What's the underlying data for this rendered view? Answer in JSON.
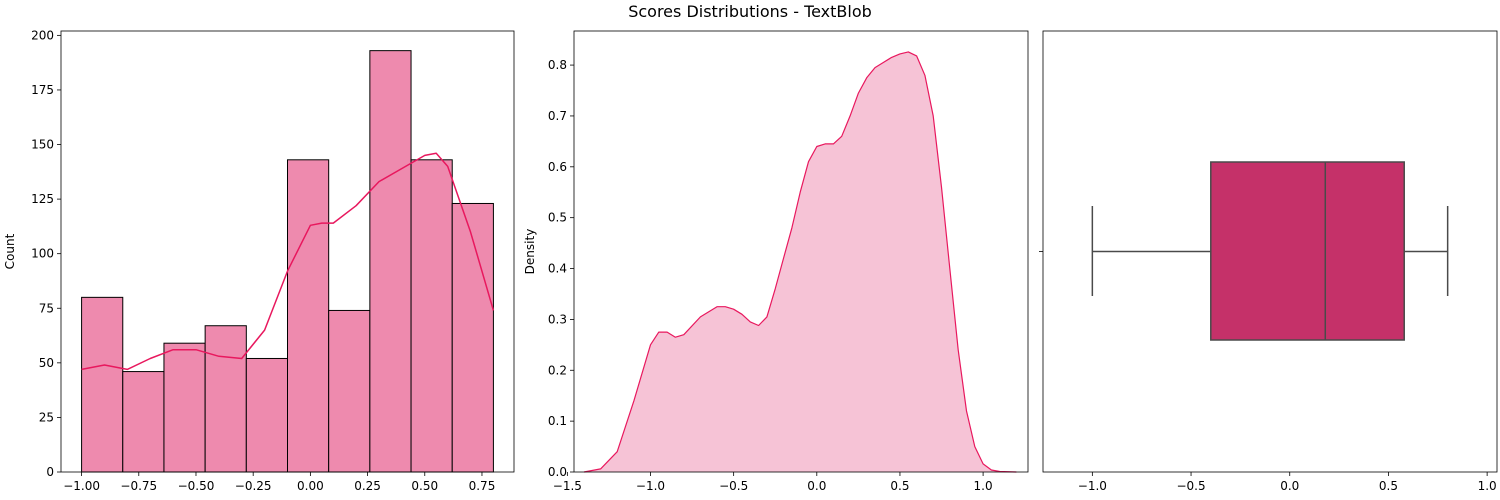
{
  "figure_title": "Scores Distributions - TextBlob",
  "colors": {
    "hist_fill": "#ee8aae",
    "hist_edge": "#000000",
    "kde_line": "#e8185e",
    "density_fill": "#f6c3d6",
    "box_fill": "#c53169",
    "box_line": "#4a4a4a"
  },
  "chart_data": [
    {
      "type": "bar",
      "name": "histogram",
      "bin_edges": [
        -1.0,
        -0.82,
        -0.64,
        -0.46,
        -0.28,
        -0.1,
        0.08,
        0.26,
        0.44,
        0.62,
        0.8
      ],
      "values": [
        80,
        46,
        59,
        67,
        52,
        143,
        74,
        193,
        143,
        123
      ],
      "kde_overlay": {
        "x": [
          -1.0,
          -0.9,
          -0.8,
          -0.7,
          -0.6,
          -0.5,
          -0.4,
          -0.3,
          -0.2,
          -0.1,
          0.0,
          0.05,
          0.1,
          0.2,
          0.3,
          0.4,
          0.5,
          0.55,
          0.6,
          0.7,
          0.8
        ],
        "y": [
          47,
          49,
          47,
          52,
          56,
          56,
          53,
          52,
          65,
          92,
          113,
          114,
          114,
          122,
          133,
          139,
          145,
          146,
          140,
          110,
          74
        ]
      },
      "xlabel": "",
      "ylabel": "Count",
      "xlim": [
        -1.09,
        0.89
      ],
      "ylim": [
        0,
        202
      ],
      "xticks": [
        -1.0,
        -0.75,
        -0.5,
        -0.25,
        0.0,
        0.25,
        0.5,
        0.75
      ],
      "xtick_labels": [
        "−1.00",
        "−0.75",
        "−0.50",
        "−0.25",
        "0.00",
        "0.25",
        "0.50",
        "0.75"
      ],
      "yticks": [
        0,
        25,
        50,
        75,
        100,
        125,
        150,
        175,
        200
      ],
      "ytick_labels": [
        "0",
        "25",
        "50",
        "75",
        "100",
        "125",
        "150",
        "175",
        "200"
      ],
      "grid": false
    },
    {
      "type": "area",
      "name": "density",
      "x": [
        -1.4,
        -1.3,
        -1.2,
        -1.1,
        -1.0,
        -0.95,
        -0.9,
        -0.85,
        -0.8,
        -0.7,
        -0.6,
        -0.55,
        -0.5,
        -0.45,
        -0.4,
        -0.35,
        -0.3,
        -0.25,
        -0.2,
        -0.15,
        -0.1,
        -0.05,
        0.0,
        0.05,
        0.1,
        0.15,
        0.2,
        0.25,
        0.3,
        0.35,
        0.4,
        0.45,
        0.5,
        0.55,
        0.6,
        0.65,
        0.7,
        0.75,
        0.8,
        0.85,
        0.9,
        0.95,
        1.0,
        1.05,
        1.1,
        1.2
      ],
      "y": [
        0.0,
        0.006,
        0.04,
        0.14,
        0.25,
        0.275,
        0.275,
        0.265,
        0.27,
        0.305,
        0.325,
        0.325,
        0.32,
        0.31,
        0.295,
        0.288,
        0.305,
        0.36,
        0.42,
        0.48,
        0.55,
        0.61,
        0.64,
        0.645,
        0.645,
        0.66,
        0.7,
        0.745,
        0.775,
        0.795,
        0.805,
        0.815,
        0.822,
        0.826,
        0.818,
        0.78,
        0.7,
        0.56,
        0.4,
        0.24,
        0.12,
        0.05,
        0.016,
        0.004,
        0.001,
        0.0
      ],
      "xlabel": "",
      "ylabel": "Density",
      "xlim": [
        -1.46,
        1.27
      ],
      "ylim": [
        0,
        0.867
      ],
      "xticks": [
        -1.5,
        -1.0,
        -0.5,
        0.0,
        0.5,
        1.0
      ],
      "xtick_labels": [
        "−1.5",
        "−1.0",
        "−0.5",
        "0.0",
        "0.5",
        "1.0"
      ],
      "yticks": [
        0.0,
        0.1,
        0.2,
        0.3,
        0.4,
        0.5,
        0.6,
        0.7,
        0.8
      ],
      "ytick_labels": [
        "0.0",
        "0.1",
        "0.2",
        "0.3",
        "0.4",
        "0.5",
        "0.6",
        "0.7",
        "0.8"
      ],
      "grid": false
    },
    {
      "type": "box",
      "name": "boxplot",
      "whisker_low": -1.0,
      "q1": -0.4,
      "median": 0.18,
      "q3": 0.58,
      "whisker_high": 0.8,
      "xlim": [
        -1.25,
        1.05
      ],
      "xticks": [
        -1.0,
        -0.5,
        0.0,
        0.5,
        1.0
      ],
      "xtick_labels": [
        "−1.0",
        "−0.5",
        "0.0",
        "0.5",
        "1.0"
      ],
      "xlabel": "",
      "ylabel": "",
      "grid": false
    }
  ]
}
